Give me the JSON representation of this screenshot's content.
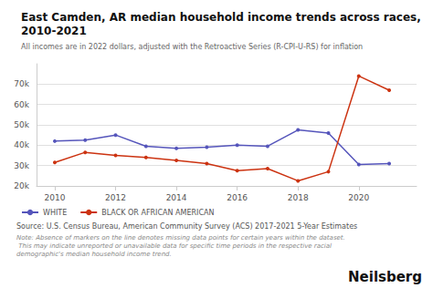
{
  "chart_data": {
    "type": "line",
    "title": "East Camden, AR median household income trends across races,\n2010-2021",
    "subtitle": "All incomes are in 2022 dollars, adjusted with the Retroactive Series (R-CPI-U-RS) for inflation",
    "annotations": [
      "Source: U.S. Census Bureau, American Community Survey (ACS) 2017-2021 5-Year Estimates",
      "Note: Absence of markers on the line denotes missing data points for certain years within the dataset. This may indicate unreported or unavailable data for specific time periods in the respective racial demographic's median household income trend.",
      "Neilsberg"
    ],
    "x": [
      2010,
      2011,
      2012,
      2013,
      2014,
      2015,
      2016,
      2017,
      2018,
      2019,
      2020,
      2021
    ],
    "series": [
      {
        "name": "WHITE",
        "color": "#5555bb",
        "values": [
          42000,
          42500,
          45000,
          39500,
          38500,
          39000,
          40000,
          39500,
          47500,
          46000,
          30500,
          31000
        ]
      },
      {
        "name": "BLACK OR AFRICAN AMERICAN",
        "color": "#cc3311",
        "values": [
          31500,
          36500,
          35000,
          34000,
          32500,
          31000,
          27500,
          28500,
          22500,
          27000,
          74000,
          67000
        ]
      }
    ],
    "xlim": [
      2009.4,
      2021.9
    ],
    "xticks": [
      2010,
      2012,
      2014,
      2016,
      2018,
      2020
    ],
    "ylim": [
      20000,
      80000
    ],
    "yticks": [
      {
        "value": 20000,
        "label": "20k"
      },
      {
        "value": 30000,
        "label": "30k"
      },
      {
        "value": 40000,
        "label": "40k"
      },
      {
        "value": 50000,
        "label": "50k"
      },
      {
        "value": 60000,
        "label": "60k"
      },
      {
        "value": 70000,
        "label": "70k"
      }
    ],
    "grid": true,
    "legend": "bottom",
    "marker": "circle"
  }
}
